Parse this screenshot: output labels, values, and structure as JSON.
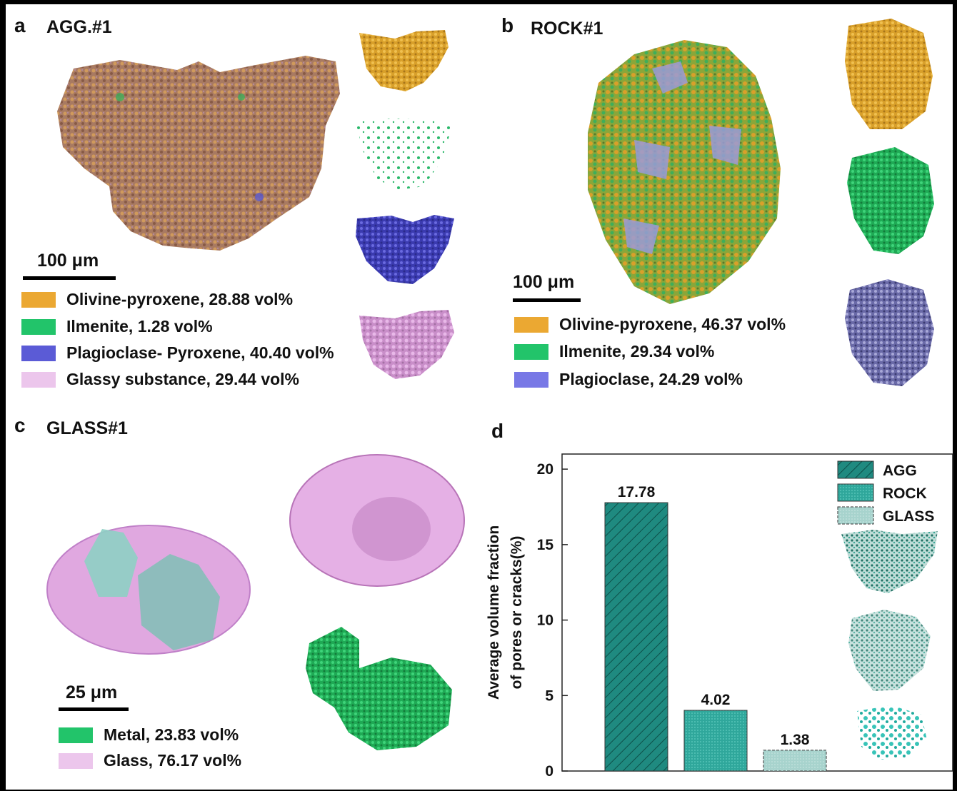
{
  "panels": {
    "a": {
      "letter": "a",
      "title": "AGG.#1",
      "scale": "100 μm",
      "legend": [
        {
          "label": "Olivine-pyroxene, 28.88 vol%",
          "color": "#eba832"
        },
        {
          "label": "Ilmenite, 1.28 vol%",
          "color": "#22c46a"
        },
        {
          "label": "Plagioclase- Pyroxene, 40.40 vol%",
          "color": "#5b5bd6"
        },
        {
          "label": "Glassy substance, 29.44 vol%",
          "color": "#ecc6ec"
        }
      ]
    },
    "b": {
      "letter": "b",
      "title": "ROCK#1",
      "scale": "100 μm",
      "legend": [
        {
          "label": "Olivine-pyroxene, 46.37 vol%",
          "color": "#eba832"
        },
        {
          "label": "Ilmenite, 29.34 vol%",
          "color": "#22c46a"
        },
        {
          "label": "Plagioclase, 24.29 vol%",
          "color": "#7878e6"
        }
      ]
    },
    "c": {
      "letter": "c",
      "title": "GLASS#1",
      "scale": "25 μm",
      "legend": [
        {
          "label": "Metal, 23.83 vol%",
          "color": "#22c46a"
        },
        {
          "label": "Glass, 76.17 vol%",
          "color": "#ecc6ec"
        }
      ]
    },
    "d": {
      "letter": "d"
    }
  },
  "chart_data": {
    "type": "bar",
    "categories": [
      "AGG",
      "ROCK",
      "GLASS"
    ],
    "values": [
      17.78,
      4.02,
      1.38
    ],
    "value_labels": [
      "17.78",
      "4.02",
      "1.38"
    ],
    "ylabel_line1": "Average volume fraction",
    "ylabel_line2": "of pores or cracks(%)",
    "ylim": [
      0,
      21
    ],
    "yticks": [
      0,
      5,
      10,
      15,
      20
    ],
    "legend": [
      "AGG",
      "ROCK",
      "GLASS"
    ],
    "legend_placement": "top-right",
    "colors": [
      "#1f8a80",
      "#2fa79b",
      "#a7d3cd"
    ],
    "grid": false
  }
}
